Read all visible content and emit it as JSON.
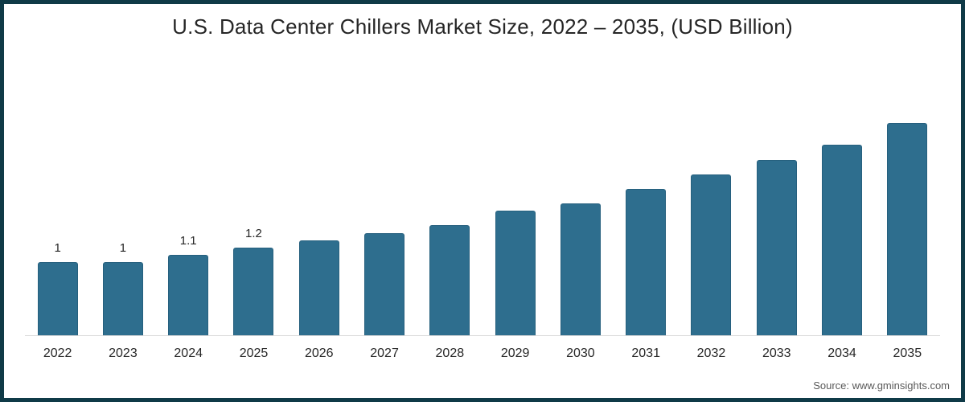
{
  "page": {
    "border_color": "#0f3a47",
    "background": "#ffffff"
  },
  "chart_data": {
    "type": "bar",
    "title": "U.S. Data Center Chillers Market Size, 2022 – 2035, (USD Billion)",
    "categories": [
      "2022",
      "2023",
      "2024",
      "2025",
      "2026",
      "2027",
      "2028",
      "2029",
      "2030",
      "2031",
      "2032",
      "2033",
      "2034",
      "2035"
    ],
    "values": [
      1,
      1,
      1.1,
      1.2,
      1.3,
      1.4,
      1.5,
      1.7,
      1.8,
      2.0,
      2.2,
      2.4,
      2.6,
      2.9
    ],
    "bar_labels": [
      "1",
      "1",
      "1.1",
      "1.2",
      "",
      "",
      "",
      "",
      "",
      "",
      "",
      "",
      "",
      ""
    ],
    "xlabel": "",
    "ylabel": "",
    "ylim": [
      0,
      3.2
    ],
    "bar_color": "#2e6e8e",
    "grid": false,
    "legend": false,
    "axis_line_color": "#d9d9d9"
  },
  "footer": {
    "source": "Source: www.gminsights.com"
  }
}
